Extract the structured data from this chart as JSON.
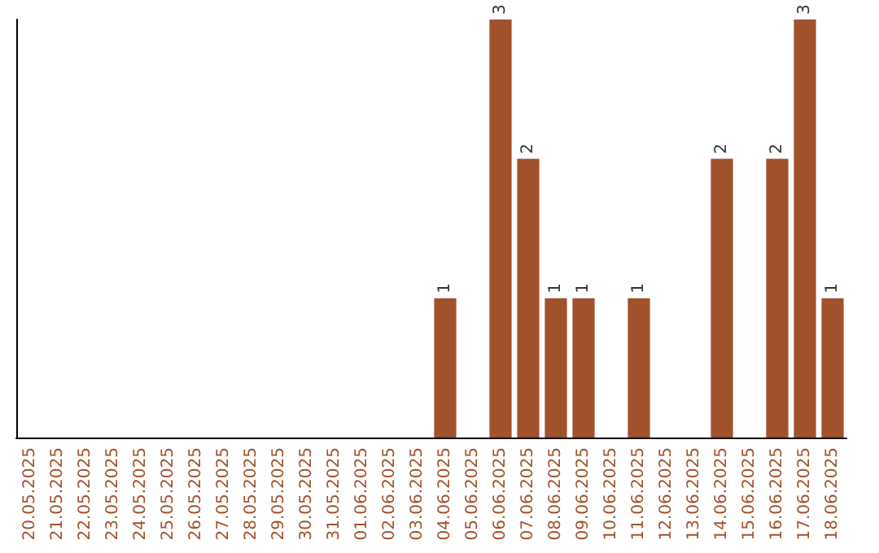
{
  "chart_data": {
    "type": "bar",
    "categories": [
      "20.05.2025",
      "21.05.2025",
      "22.05.2025",
      "23.05.2025",
      "24.05.2025",
      "25.05.2025",
      "26.05.2025",
      "27.05.2025",
      "28.05.2025",
      "29.05.2025",
      "30.05.2025",
      "31.05.2025",
      "01.06.2025",
      "02.06.2025",
      "03.06.2025",
      "04.06.2025",
      "05.06.2025",
      "06.06.2025",
      "07.06.2025",
      "08.06.2025",
      "09.06.2025",
      "10.06.2025",
      "11.06.2025",
      "12.06.2025",
      "13.06.2025",
      "14.06.2025",
      "15.06.2025",
      "16.06.2025",
      "17.06.2025",
      "18.06.2025"
    ],
    "values": [
      null,
      null,
      null,
      null,
      null,
      null,
      null,
      null,
      null,
      null,
      null,
      null,
      null,
      null,
      null,
      1,
      null,
      3,
      2,
      1,
      1,
      null,
      1,
      null,
      null,
      2,
      null,
      2,
      3,
      1
    ],
    "data_labels": true,
    "color": "#a0522d",
    "grid": false
  }
}
